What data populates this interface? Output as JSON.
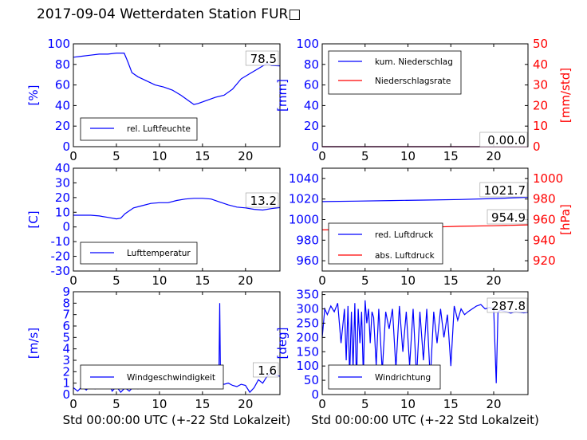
{
  "title": "2017-09-04 Wetterdaten Station FUR□",
  "colors": {
    "primary": "#0000ff",
    "secondary": "#ff0000",
    "axis": "#000000"
  },
  "chart_data": [
    {
      "id": "humidity",
      "type": "line",
      "ylabel": "[%]",
      "xlim": [
        0,
        24
      ],
      "ylim": [
        0,
        100
      ],
      "xticks": [
        0,
        5,
        10,
        15,
        20
      ],
      "yticks": [
        0,
        20,
        40,
        60,
        80,
        100
      ],
      "last_value": "78.5",
      "legend_position": "lower-left",
      "series": [
        {
          "name": "rel. Luftfeuchte",
          "axis": "left",
          "color": "#0000ff",
          "x": [
            0,
            1,
            2,
            3,
            4,
            5,
            5.9,
            6.3,
            6.8,
            7.5,
            8.5,
            9.5,
            10.5,
            11.5,
            12.5,
            13.5,
            14,
            14.5,
            15.5,
            16.5,
            17.5,
            18.5,
            19.5,
            20.5,
            21.5,
            22.5,
            23,
            24
          ],
          "y": [
            87,
            88,
            89,
            90,
            90,
            91,
            91,
            83,
            72,
            68,
            64,
            60,
            58,
            55,
            50,
            44,
            41,
            42,
            45,
            48,
            50,
            56,
            66,
            71,
            76,
            81,
            79,
            78.5
          ]
        }
      ]
    },
    {
      "id": "precipitation",
      "type": "line",
      "ylabel": "[mm]",
      "ylabel_right": "[mm/std]",
      "xlim": [
        0,
        24
      ],
      "ylim": [
        0,
        100
      ],
      "ylim_right": [
        0,
        50
      ],
      "xticks": [
        0,
        5,
        10,
        15,
        20
      ],
      "yticks": [
        0,
        20,
        40,
        60,
        80,
        100
      ],
      "yticks_right": [
        0,
        10,
        20,
        30,
        40,
        50
      ],
      "last_value": "0.00.0",
      "legend_position": "upper-left",
      "series": [
        {
          "name": "kum. Niederschlag",
          "axis": "left",
          "color": "#0000ff",
          "x": [
            0,
            24
          ],
          "y": [
            0,
            0
          ]
        },
        {
          "name": "Niederschlagsrate",
          "axis": "right",
          "color": "#ff0000",
          "x": [
            0,
            24
          ],
          "y": [
            0,
            0
          ]
        }
      ]
    },
    {
      "id": "temperature",
      "type": "line",
      "ylabel": "[C]",
      "xlim": [
        0,
        24
      ],
      "ylim": [
        -30,
        40
      ],
      "xticks": [
        0,
        5,
        10,
        15,
        20
      ],
      "yticks": [
        -30,
        -20,
        -10,
        0,
        10,
        20,
        30,
        40
      ],
      "last_value": "13.2",
      "legend_position": "lower-left",
      "series": [
        {
          "name": "Lufttemperatur",
          "axis": "left",
          "color": "#0000ff",
          "x": [
            0,
            1,
            2,
            3,
            4,
            5,
            5.5,
            6,
            7,
            8,
            9,
            10,
            11,
            12,
            13,
            14,
            15,
            16,
            17,
            18,
            19,
            20,
            21,
            22,
            23,
            24
          ],
          "y": [
            8,
            8,
            8,
            7.5,
            6.5,
            5.5,
            6,
            9,
            13,
            14.5,
            16,
            16.5,
            16.5,
            18,
            19,
            19.5,
            19.5,
            19,
            17,
            15,
            13.5,
            13,
            12,
            11.5,
            12.5,
            13.2
          ]
        }
      ]
    },
    {
      "id": "pressure",
      "type": "line",
      "ylabel_right": "[hPa]",
      "xlim": [
        0,
        24
      ],
      "ylim": [
        950,
        1050
      ],
      "ylim_right": [
        910,
        1010
      ],
      "xticks": [
        0,
        5,
        10,
        15,
        20
      ],
      "yticks": [
        960,
        980,
        1000,
        1020,
        1040
      ],
      "yticks_right": [
        920,
        940,
        960,
        980,
        1000
      ],
      "last_values": [
        "1021.7",
        "954.9"
      ],
      "legend_position": "lower-left",
      "series": [
        {
          "name": "red. Luftdruck",
          "axis": "left",
          "color": "#0000ff",
          "x": [
            0,
            4,
            8,
            12,
            16,
            20,
            24
          ],
          "y": [
            1017.5,
            1018,
            1018.5,
            1019,
            1019.5,
            1020.5,
            1021.7
          ]
        },
        {
          "name": "abs. Luftdruck",
          "axis": "right",
          "color": "#ff0000",
          "x": [
            0,
            4,
            8,
            12,
            16,
            20,
            24
          ],
          "y": [
            950,
            950.3,
            951,
            952.5,
            953.5,
            954,
            954.9
          ]
        }
      ]
    },
    {
      "id": "wind-speed",
      "type": "line",
      "ylabel": "[m/s]",
      "xlabel": "Std 00:00:00 UTC (+-22 Std Lokalzeit)",
      "xlim": [
        0,
        24
      ],
      "ylim": [
        0,
        9
      ],
      "xticks": [
        0,
        5,
        10,
        15,
        20
      ],
      "yticks": [
        0,
        1,
        2,
        3,
        4,
        5,
        6,
        7,
        8,
        9
      ],
      "last_value": "1.6",
      "legend_position": "lower-left",
      "series": [
        {
          "name": "Windgeschwindigkeit",
          "axis": "left",
          "color": "#0000ff",
          "x": [
            0,
            0.5,
            1,
            1.5,
            2,
            2.5,
            3,
            3.5,
            4,
            4.5,
            5,
            5.5,
            6,
            6.5,
            7,
            7.5,
            8,
            8.5,
            9,
            9.5,
            10,
            10.5,
            11,
            11.5,
            12,
            12.5,
            13,
            13.5,
            14,
            14.5,
            15,
            15.5,
            16,
            16.5,
            16.9,
            17,
            17.1,
            17.5,
            18,
            18.5,
            19,
            19.5,
            20,
            20.5,
            21,
            21.5,
            22,
            22.5,
            23,
            23.5,
            24
          ],
          "y": [
            0.6,
            0.3,
            0.7,
            0.4,
            0.8,
            0.5,
            1.2,
            0.9,
            1.4,
            0.3,
            0.7,
            0.2,
            0.6,
            0.3,
            0.7,
            0.5,
            1.0,
            0.7,
            1.2,
            0.8,
            1.6,
            1.2,
            1.8,
            1.3,
            2.0,
            1.5,
            2.2,
            1.6,
            2.3,
            1.7,
            2.4,
            1.9,
            2.2,
            1.4,
            1.2,
            8.0,
            1.0,
            0.9,
            1.0,
            0.8,
            0.7,
            0.9,
            0.8,
            0.2,
            0.6,
            1.3,
            1.0,
            1.6,
            1.9,
            1.7,
            1.6
          ]
        }
      ]
    },
    {
      "id": "wind-direction",
      "type": "line",
      "ylabel": "[deg]",
      "xlabel": "Std 00:00:00 UTC (+-22 Std Lokalzeit)",
      "xlim": [
        0,
        24
      ],
      "ylim": [
        0,
        360
      ],
      "xticks": [
        0,
        5,
        10,
        15,
        20
      ],
      "yticks": [
        0,
        50,
        100,
        150,
        200,
        250,
        300,
        350
      ],
      "last_value": "287.8",
      "legend_position": "lower-left",
      "series": [
        {
          "name": "Windrichtung",
          "axis": "left",
          "color": "#0000ff",
          "x": [
            0,
            0.3,
            0.6,
            1,
            1.4,
            1.8,
            2.2,
            2.6,
            2.8,
            3.0,
            3.2,
            3.4,
            3.6,
            3.8,
            4.0,
            4.2,
            4.4,
            4.6,
            4.8,
            5.0,
            5.2,
            5.4,
            5.6,
            5.8,
            6.0,
            6.3,
            6.6,
            7.0,
            7.4,
            7.8,
            8.2,
            8.6,
            9.0,
            9.4,
            9.8,
            10.2,
            10.6,
            11.0,
            11.4,
            11.8,
            12.2,
            12.6,
            13.0,
            13.4,
            13.8,
            14.2,
            14.6,
            15.0,
            15.4,
            15.8,
            16.2,
            16.6,
            17.0,
            17.5,
            18,
            18.5,
            19,
            19.5,
            20,
            20.3,
            20.5,
            20.8,
            21.5,
            22,
            22.5,
            23,
            23.5,
            24
          ],
          "y": [
            200,
            300,
            280,
            310,
            290,
            320,
            180,
            300,
            120,
            310,
            60,
            290,
            90,
            320,
            30,
            300,
            180,
            290,
            60,
            330,
            250,
            300,
            180,
            290,
            270,
            100,
            300,
            80,
            290,
            230,
            300,
            90,
            310,
            150,
            290,
            100,
            300,
            60,
            290,
            120,
            300,
            50,
            290,
            180,
            300,
            200,
            280,
            100,
            310,
            260,
            300,
            280,
            290,
            300,
            310,
            315,
            300,
            305,
            300,
            40,
            290,
            295,
            290,
            285,
            290,
            288,
            286,
            287.8
          ]
        }
      ]
    }
  ]
}
